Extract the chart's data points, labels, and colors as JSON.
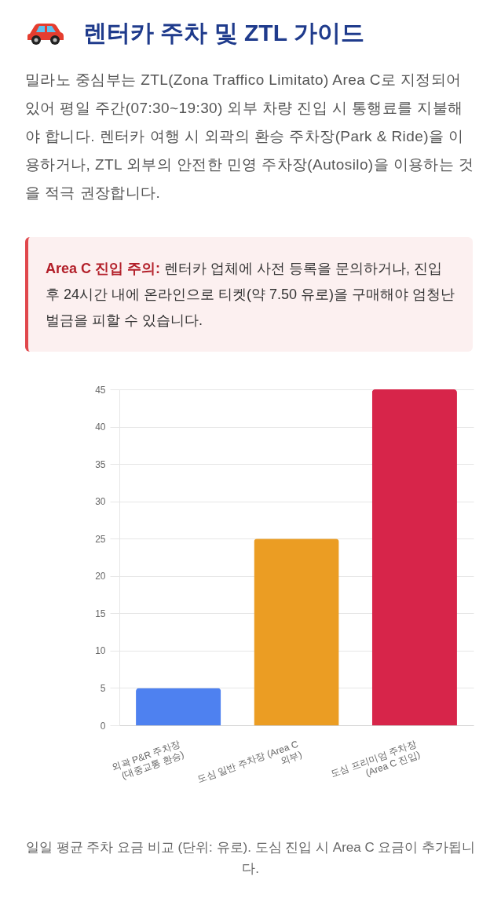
{
  "chart_data": {
    "type": "bar",
    "title": "렌터카 주차 및 ZTL 가이드",
    "subtitle": "밀라노 중심부는 ZTL(Zona Traffico Limitato) Area C로 지정되어 있어 평일 주간(07:30~19:30) 외부 차량 진입 시 통행료를 지불해야 합니다. 렌터카 여행 시 외곽의 환승 주차장(Park & Ride)을 이용하거나, ZTL 외부의 안전한 민영 주차장(Autosilo)을 이용하는 것을 적극 권장합니다.",
    "categories": [
      "외곽 P&R 주차장 (대중교통 환승)",
      "도심 일반 주차장 (Area C 외부)",
      "도심 프리미엄 주차장 (Area C 진입)"
    ],
    "values": [
      5,
      25,
      45
    ],
    "colors": [
      "#4e81f0",
      "#eb9d23",
      "#d7254a"
    ],
    "ylim": [
      0,
      45
    ],
    "yticks": [
      0,
      5,
      10,
      15,
      20,
      25,
      30,
      35,
      40,
      45
    ],
    "grid": "y",
    "annotations": [
      "Area C 진입 주의:",
      "렌터카 업체에 사전 등록을 문의하거나, 진입 후 24시간 내에 온라인으로 티켓(약 7.50 유로)을 구매해야 엄청난 벌금을 피할 수 있습니다.",
      "일일 평균 주차 요금 비교 (단위: 유로). 도심 진입 시 Area C 요금이 추가됩니다."
    ]
  }
}
